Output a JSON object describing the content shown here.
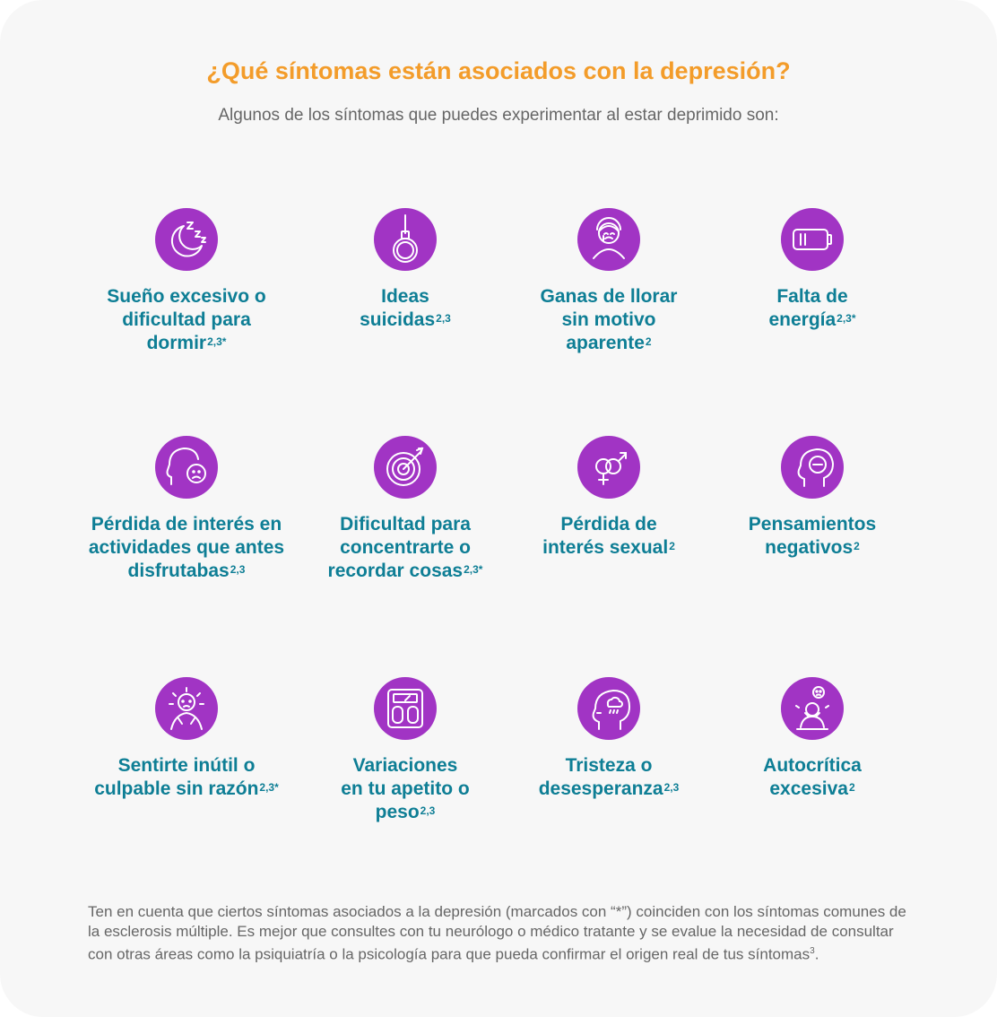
{
  "header": {
    "title": "¿Qué síntomas están asociados con la depresión?",
    "subtitle": "Algunos de los síntomas que puedes experimentar al estar deprimido son:"
  },
  "symptoms": [
    {
      "icon": "sleep-moon-icon",
      "lines": [
        "Sueño excesivo o",
        "dificultad para",
        "dormir"
      ],
      "ref": "2,3*"
    },
    {
      "icon": "noose-icon",
      "lines": [
        "Ideas",
        "suicidas"
      ],
      "ref": "2,3"
    },
    {
      "icon": "crying-person-icon",
      "lines": [
        "Ganas de llorar",
        "sin motivo",
        "aparente"
      ],
      "ref": "2"
    },
    {
      "icon": "low-battery-icon",
      "lines": [
        "Falta de",
        "energía"
      ],
      "ref": "2,3*"
    },
    {
      "icon": "sad-face-head-icon",
      "lines": [
        "Pérdida de interés en",
        "actividades que antes",
        "disfrutabas"
      ],
      "ref": "2,3"
    },
    {
      "icon": "target-arrow-icon",
      "lines": [
        "Dificultad para",
        "concentrarte o",
        "recordar cosas"
      ],
      "ref": "2,3*"
    },
    {
      "icon": "gender-symbols-icon",
      "lines": [
        "Pérdida de",
        "interés sexual"
      ],
      "ref": "2"
    },
    {
      "icon": "negative-thought-head-icon",
      "lines": [
        "Pensamientos",
        "negativos"
      ],
      "ref": "2"
    },
    {
      "icon": "stressed-person-icon",
      "lines": [
        "Sentirte inútil o",
        "culpable sin razón"
      ],
      "ref": "2,3*"
    },
    {
      "icon": "scale-icon",
      "lines": [
        "Variaciones",
        "en tu apetito o",
        "peso"
      ],
      "ref": "2,3"
    },
    {
      "icon": "rain-cloud-head-icon",
      "lines": [
        "Tristeza o",
        "desesperanza"
      ],
      "ref": "2,3"
    },
    {
      "icon": "self-criticism-person-icon",
      "lines": [
        "Autocrítica",
        "excesiva"
      ],
      "ref": "2"
    }
  ],
  "footnote": {
    "text": "Ten en cuenta que ciertos síntomas asociados a la depresión (marcados con “*”) coinciden con los síntomas comunes de la esclerosis múltiple. Es mejor que consultes con tu neurólogo o médico tratante y se evalue la necesidad de consultar con otras áreas como la psiquiatría o la psicología para que pueda confirmar el origen real de tus síntomas",
    "ref": "3",
    "end": "."
  },
  "colors": {
    "title": "#f39c2a",
    "label": "#0e7e95",
    "icon_circle": "#a134c4",
    "text": "#666666"
  }
}
